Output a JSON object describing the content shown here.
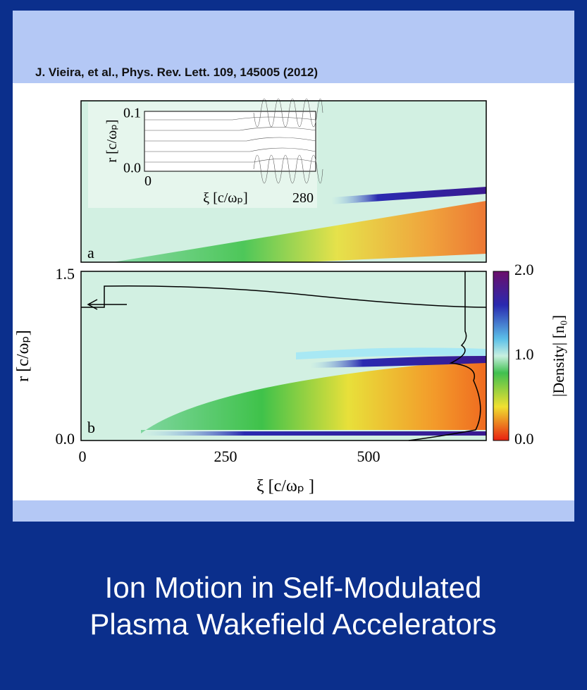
{
  "citation": "J. Vieira, et al., Phys. Rev. Lett. 109, 145005 (2012)",
  "figure": {
    "panel_a": {
      "label": "a",
      "inset": {
        "y_ticks": [
          "0.1",
          "0.0"
        ],
        "x_ticks": [
          "0",
          "280"
        ],
        "y_label": "r [c/ωₚ]",
        "x_label": "ξ [c/ωₚ]"
      }
    },
    "panel_b": {
      "label": "b",
      "y_ticks": [
        "1.5",
        "0.0"
      ],
      "x_ticks": [
        "0",
        "250",
        "500"
      ],
      "y_label": "r [c/ωₚ]",
      "x_label": "ξ [c/ωₚ ]"
    },
    "colorbar": {
      "ticks": [
        "2.0",
        "1.0",
        "0.0"
      ],
      "label": "|Density| [n₀]"
    }
  },
  "title": [
    "Ion Motion in Self-Modulated",
    "Plasma Wakefield Accelerators"
  ]
}
